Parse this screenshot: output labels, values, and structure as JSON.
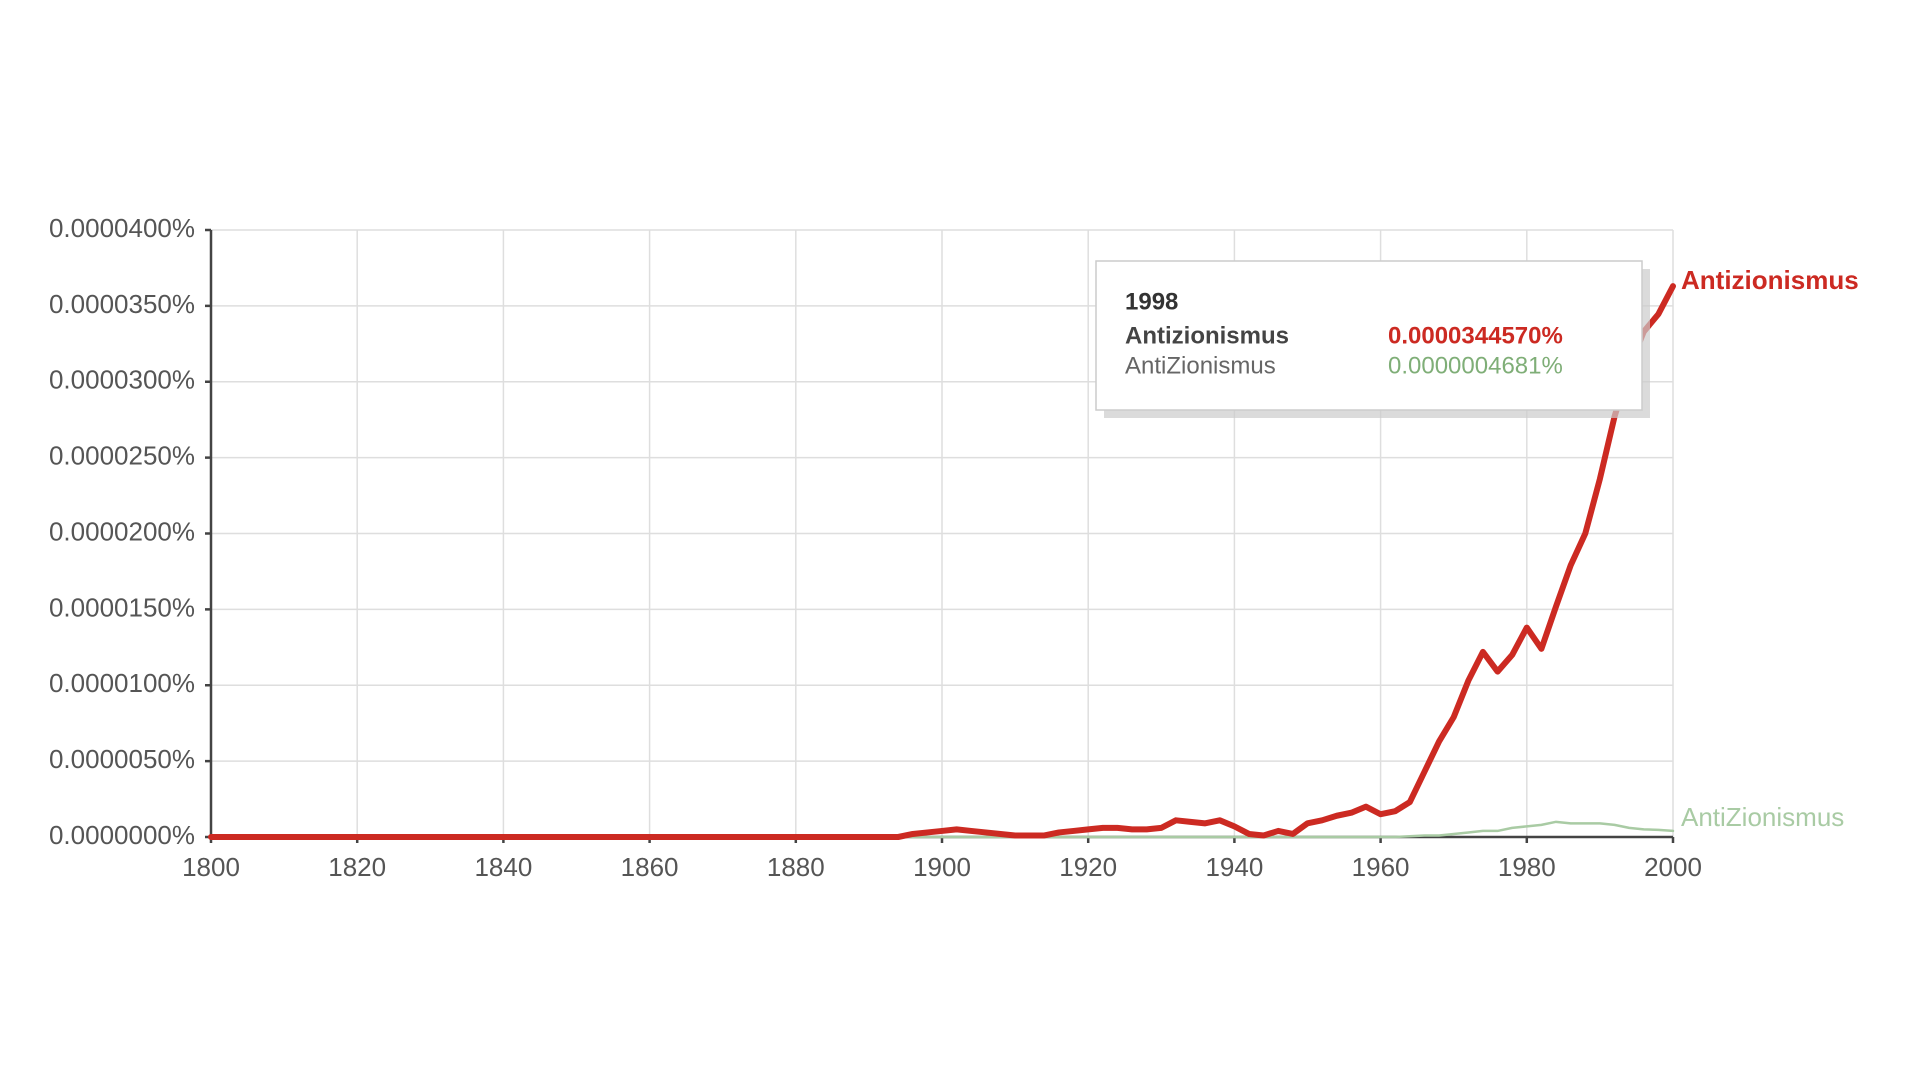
{
  "chart_data": {
    "type": "line",
    "x": [
      1800,
      1850,
      1894,
      1896,
      1898,
      1900,
      1902,
      1904,
      1906,
      1908,
      1910,
      1912,
      1914,
      1916,
      1918,
      1920,
      1922,
      1924,
      1926,
      1928,
      1930,
      1932,
      1934,
      1936,
      1938,
      1940,
      1942,
      1944,
      1946,
      1948,
      1950,
      1952,
      1954,
      1956,
      1958,
      1960,
      1962,
      1964,
      1966,
      1968,
      1970,
      1972,
      1974,
      1976,
      1978,
      1980,
      1982,
      1984,
      1986,
      1988,
      1990,
      1992,
      1994,
      1996,
      1998,
      2000
    ],
    "series": [
      {
        "name": "Antizionismus",
        "color": "#cc2a22",
        "values": [
          0,
          0,
          0,
          2e-07,
          3e-07,
          4e-07,
          5e-07,
          4e-07,
          3e-07,
          2e-07,
          1e-07,
          1e-07,
          1e-07,
          3e-07,
          4e-07,
          5e-07,
          6e-07,
          6e-07,
          5e-07,
          5e-07,
          6e-07,
          1.1e-06,
          1e-06,
          9e-07,
          1.1e-06,
          7e-07,
          2e-07,
          1e-07,
          4e-07,
          2e-07,
          9e-07,
          1.1e-06,
          1.4e-06,
          1.6e-06,
          2e-06,
          1.5e-06,
          1.7e-06,
          2.3e-06,
          4.3e-06,
          6.3e-06,
          7.9e-06,
          1.03e-05,
          1.22e-05,
          1.09e-05,
          1.2e-05,
          1.38e-05,
          1.24e-05,
          1.52e-05,
          1.79e-05,
          2e-05,
          2.36e-05,
          2.77e-05,
          3.09e-05,
          3.33e-05,
          3.4457e-05,
          3.63e-05
        ]
      },
      {
        "name": "AntiZionismus",
        "color": "#a9cba4",
        "values": [
          0,
          0,
          0,
          0,
          0,
          0,
          0,
          0,
          0,
          0,
          0,
          0,
          0,
          0,
          0,
          0,
          0,
          0,
          0,
          0,
          0,
          0,
          0,
          0,
          0,
          0,
          0,
          0,
          0,
          0,
          0,
          0,
          0,
          0,
          0,
          0,
          0,
          5e-08,
          1e-07,
          1e-07,
          2e-07,
          3e-07,
          4e-07,
          4e-07,
          6e-07,
          7e-07,
          8e-07,
          1e-06,
          9e-07,
          9e-07,
          9e-07,
          8e-07,
          6e-07,
          5e-07,
          4.681e-07,
          4e-07
        ]
      }
    ],
    "xlim": [
      1800,
      2000
    ],
    "xticks": [
      1800,
      1820,
      1840,
      1860,
      1880,
      1900,
      1920,
      1940,
      1960,
      1980,
      2000
    ],
    "ylim": [
      0,
      4e-05
    ],
    "yticks": [
      {
        "value": 0,
        "label": "0.0000000%"
      },
      {
        "value": 5e-06,
        "label": "0.0000050%"
      },
      {
        "value": 1e-05,
        "label": "0.0000100%"
      },
      {
        "value": 1.5e-05,
        "label": "0.0000150%"
      },
      {
        "value": 2e-05,
        "label": "0.0000200%"
      },
      {
        "value": 2.5e-05,
        "label": "0.0000250%"
      },
      {
        "value": 3e-05,
        "label": "0.0000300%"
      },
      {
        "value": 3.5e-05,
        "label": "0.0000350%"
      },
      {
        "value": 4e-05,
        "label": "0.0000400%"
      }
    ],
    "grid": true,
    "tooltip": {
      "title": "1998",
      "values": [
        "0.0000344570%",
        "0.0000004681%"
      ]
    }
  }
}
